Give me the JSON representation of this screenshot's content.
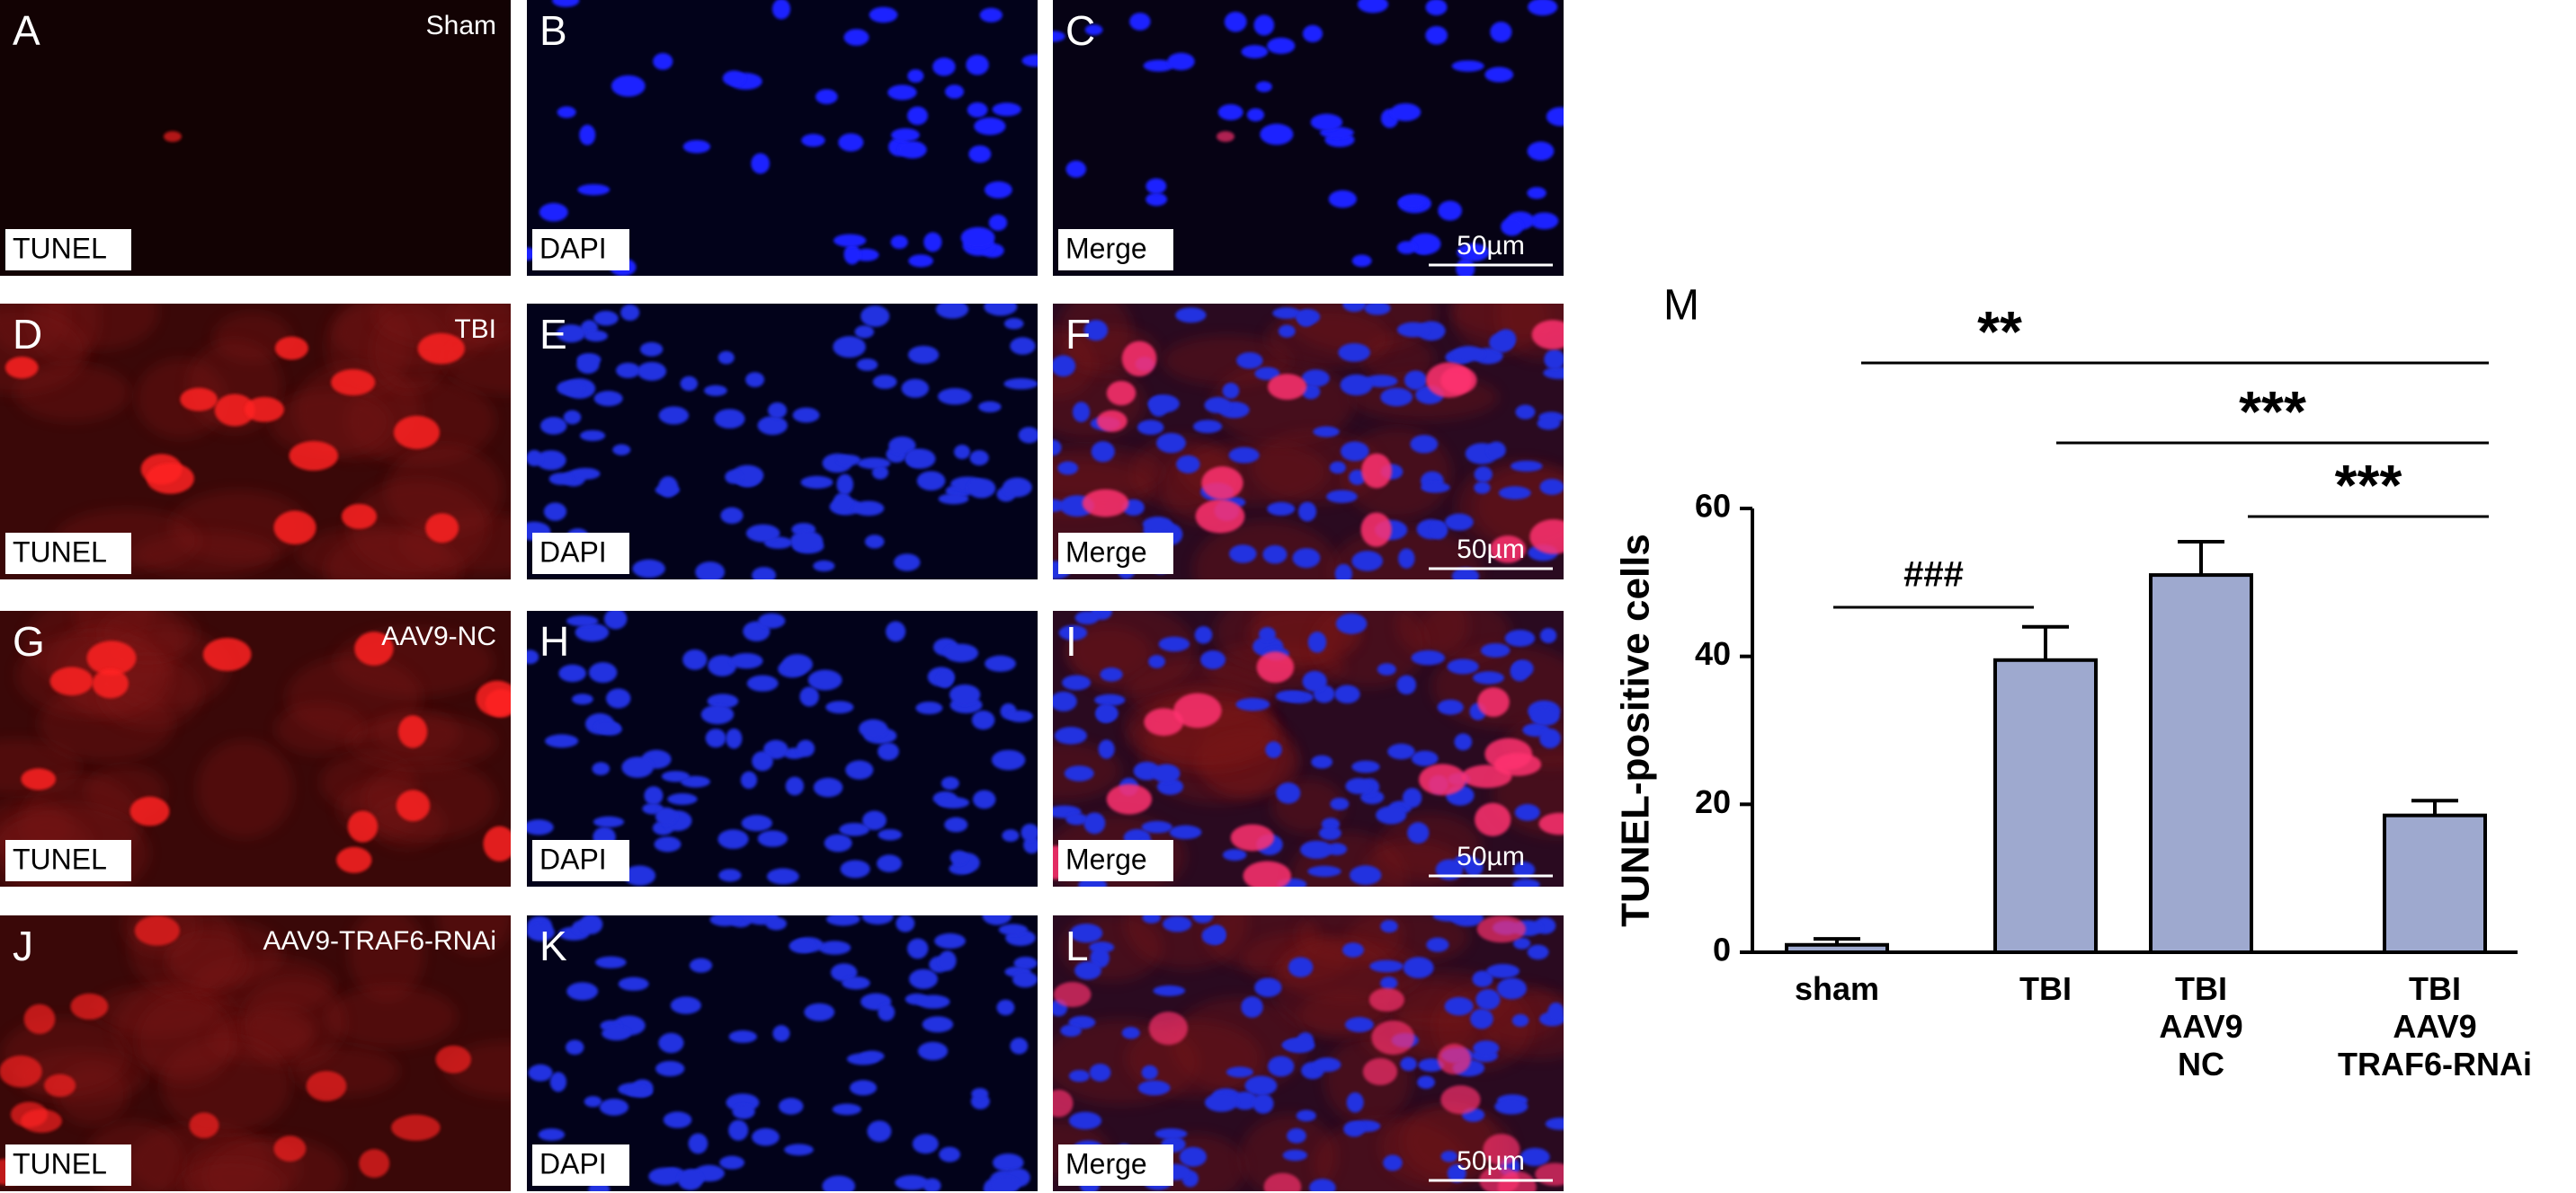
{
  "panels": [
    {
      "letter": "A",
      "label": "TUNEL",
      "tag": "Sham"
    },
    {
      "letter": "B",
      "label": "DAPI"
    },
    {
      "letter": "C",
      "label": "Merge",
      "scale": "50µm"
    },
    {
      "letter": "D",
      "label": "TUNEL",
      "tag": "TBI"
    },
    {
      "letter": "E",
      "label": "DAPI"
    },
    {
      "letter": "F",
      "label": "Merge",
      "scale": "50µm"
    },
    {
      "letter": "G",
      "label": "TUNEL",
      "tag": "AAV9-NC"
    },
    {
      "letter": "H",
      "label": "DAPI"
    },
    {
      "letter": "I",
      "label": "Merge",
      "scale": "50µm"
    },
    {
      "letter": "J",
      "label": "TUNEL",
      "tag": "AAV9-TRAF6-RNAi"
    },
    {
      "letter": "K",
      "label": "DAPI"
    },
    {
      "letter": "L",
      "label": "Merge",
      "scale": "50µm"
    }
  ],
  "chart_data": {
    "type": "bar",
    "panel": "M",
    "ylabel": "TUNEL-positive cells",
    "categories": [
      "sham",
      "TBI",
      "TBI\nAAV9\nNC",
      "TBI\nAAV9\nTRAF6-RNAi"
    ],
    "values": [
      1,
      39.5,
      51,
      18.5
    ],
    "errors": [
      0.8,
      4.5,
      4.5,
      2
    ],
    "color": "#9ea9cf",
    "ylim": [
      0,
      60
    ],
    "yticks": [
      0,
      20,
      40,
      60
    ],
    "annotations": [
      {
        "text": "**"
      },
      {
        "text": "***"
      },
      {
        "text": "***"
      },
      {
        "text": "###"
      }
    ]
  }
}
